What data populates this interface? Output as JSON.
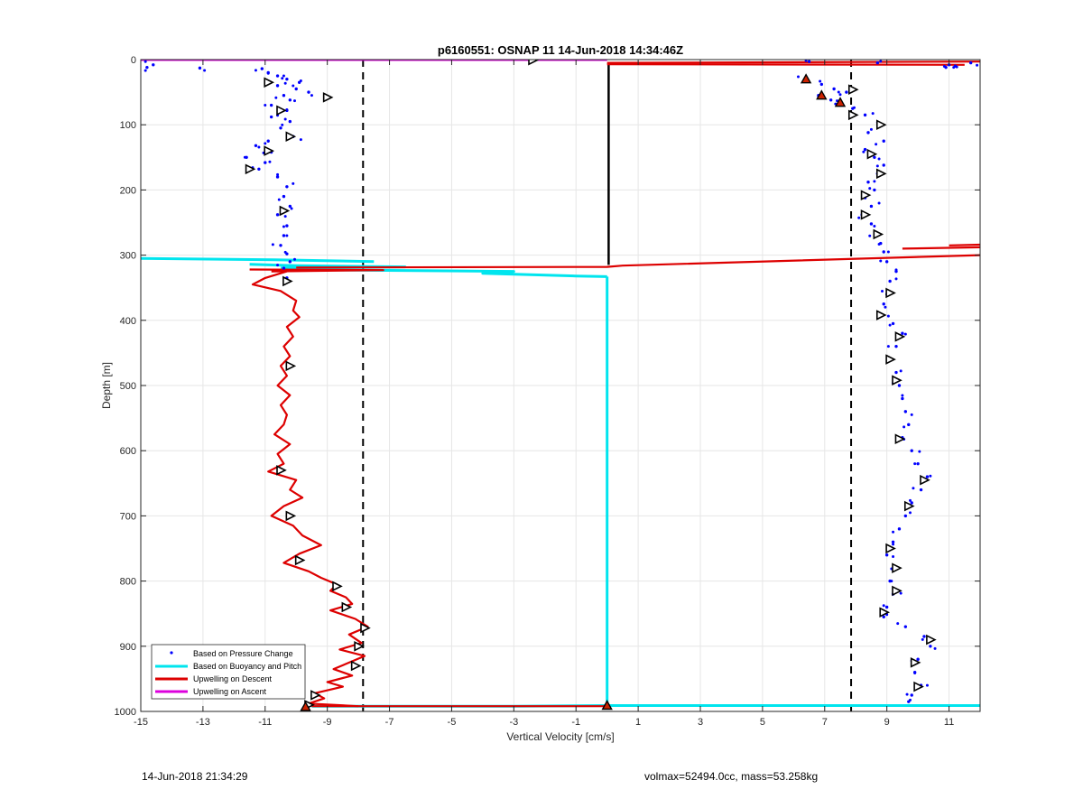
{
  "chart_data": {
    "type": "scatter",
    "title": "p6160551: OSNAP 11 14-Jun-2018 14:34:46Z",
    "xlabel": "Vertical Velocity [cm/s]",
    "ylabel": "Depth [m]",
    "xlim": [
      -15,
      12
    ],
    "ylim": [
      0,
      1000
    ],
    "y_reversed": true,
    "grid": true,
    "xticks": [
      -15,
      -13,
      -11,
      -9,
      -7,
      -5,
      -3,
      -1,
      1,
      3,
      5,
      7,
      9,
      11
    ],
    "yticks": [
      0,
      100,
      200,
      300,
      400,
      500,
      600,
      700,
      800,
      900,
      1000
    ],
    "legend_position": "bottom-left",
    "reference_lines": {
      "dashed_x": [
        -7.85,
        7.85
      ],
      "solid_x": 0.05,
      "solid_depth": [
        5,
        315
      ]
    },
    "series": [
      {
        "name": "Based on Pressure Change",
        "style": "points",
        "color": "#0000ff",
        "descent_points": [
          [
            -14.6,
            8
          ],
          [
            -14.8,
            12
          ],
          [
            -13.1,
            13
          ],
          [
            -11.1,
            14
          ],
          [
            -10.9,
            20
          ],
          [
            -10.6,
            25
          ],
          [
            -10.3,
            30
          ],
          [
            -9.9,
            35
          ],
          [
            -10.6,
            40
          ],
          [
            -10.0,
            45
          ],
          [
            -9.6,
            50
          ],
          [
            -10.4,
            55
          ],
          [
            -9.0,
            58
          ],
          [
            -10.2,
            62
          ],
          [
            -10.8,
            70
          ],
          [
            -10.3,
            78
          ],
          [
            -10.8,
            88
          ],
          [
            -10.2,
            95
          ],
          [
            -10.5,
            105
          ],
          [
            -10.1,
            118
          ],
          [
            -10.9,
            125
          ],
          [
            -11.3,
            132
          ],
          [
            -10.8,
            142
          ],
          [
            -11.6,
            150
          ],
          [
            -11.0,
            158
          ],
          [
            -11.2,
            168
          ],
          [
            -10.6,
            180
          ],
          [
            -10.3,
            195
          ],
          [
            -10.4,
            210
          ],
          [
            -10.2,
            225
          ],
          [
            -10.6,
            238
          ],
          [
            -10.3,
            255
          ],
          [
            -10.4,
            270
          ],
          [
            -10.5,
            285
          ],
          [
            -10.3,
            298
          ],
          [
            -10.2,
            310
          ],
          [
            -10.4,
            320
          ],
          [
            -10.3,
            335
          ]
        ],
        "ascent_points": [
          [
            11.7,
            5
          ],
          [
            11.0,
            8
          ],
          [
            11.2,
            10
          ],
          [
            10.9,
            12
          ],
          [
            6.5,
            3
          ],
          [
            8.7,
            5
          ],
          [
            6.4,
            30
          ],
          [
            6.9,
            38
          ],
          [
            7.3,
            45
          ],
          [
            7.7,
            50
          ],
          [
            6.8,
            55
          ],
          [
            7.2,
            62
          ],
          [
            7.5,
            68
          ],
          [
            7.9,
            75
          ],
          [
            8.3,
            85
          ],
          [
            8.8,
            100
          ],
          [
            8.4,
            112
          ],
          [
            8.9,
            125
          ],
          [
            8.3,
            138
          ],
          [
            8.6,
            150
          ],
          [
            8.9,
            162
          ],
          [
            8.7,
            175
          ],
          [
            8.4,
            188
          ],
          [
            8.6,
            200
          ],
          [
            8.3,
            212
          ],
          [
            8.5,
            225
          ],
          [
            8.2,
            238
          ],
          [
            8.5,
            252
          ],
          [
            8.7,
            268
          ],
          [
            8.8,
            282
          ],
          [
            8.9,
            295
          ],
          [
            9.0,
            310
          ],
          [
            9.3,
            325
          ],
          [
            9.1,
            340
          ],
          [
            9.0,
            360
          ],
          [
            8.9,
            375
          ],
          [
            8.8,
            390
          ],
          [
            9.2,
            405
          ],
          [
            9.5,
            420
          ],
          [
            9.3,
            440
          ],
          [
            9.1,
            460
          ],
          [
            9.3,
            480
          ],
          [
            9.4,
            500
          ],
          [
            9.5,
            520
          ],
          [
            9.6,
            540
          ],
          [
            9.7,
            560
          ],
          [
            9.5,
            580
          ],
          [
            9.8,
            600
          ],
          [
            10.0,
            620
          ],
          [
            10.3,
            640
          ],
          [
            10.1,
            660
          ],
          [
            9.8,
            680
          ],
          [
            9.6,
            700
          ],
          [
            9.4,
            720
          ],
          [
            9.2,
            740
          ],
          [
            9.0,
            760
          ],
          [
            9.3,
            780
          ],
          [
            9.1,
            800
          ],
          [
            9.2,
            820
          ],
          [
            9.0,
            840
          ],
          [
            8.9,
            855
          ],
          [
            9.6,
            870
          ],
          [
            10.2,
            885
          ],
          [
            10.4,
            900
          ],
          [
            10.0,
            920
          ],
          [
            9.9,
            940
          ],
          [
            10.1,
            960
          ],
          [
            9.8,
            975
          ],
          [
            9.7,
            985
          ]
        ]
      },
      {
        "name": "Based on Buoyancy and Pitch",
        "style": "line",
        "color": "#00e5ee",
        "segments": [
          [
            [
              -15,
              305
            ],
            [
              -10.7,
              307
            ],
            [
              -7.5,
              310
            ]
          ],
          [
            [
              -11.5,
              314
            ],
            [
              -10.0,
              316
            ],
            [
              -6.5,
              318
            ],
            [
              -10.5,
              320
            ]
          ],
          [
            [
              -10.5,
              322
            ],
            [
              -3.0,
              325
            ],
            [
              -4.0,
              328
            ],
            [
              -1.0,
              332
            ],
            [
              0.0,
              333
            ]
          ],
          [
            [
              0.0,
              333
            ],
            [
              0.0,
              990
            ]
          ],
          [
            [
              -9.5,
              992
            ],
            [
              -3,
              992
            ],
            [
              0.0,
              991
            ],
            [
              12,
              991
            ]
          ]
        ]
      },
      {
        "name": "Upwelling on Descent",
        "style": "line",
        "color": "#dd0000",
        "profile": [
          [
            -10.3,
            325
          ],
          [
            -11.0,
            335
          ],
          [
            -11.4,
            345
          ],
          [
            -10.5,
            355
          ],
          [
            -10.0,
            370
          ],
          [
            -10.1,
            385
          ],
          [
            -9.9,
            395
          ],
          [
            -10.3,
            410
          ],
          [
            -10.1,
            425
          ],
          [
            -10.4,
            440
          ],
          [
            -10.2,
            455
          ],
          [
            -10.5,
            470
          ],
          [
            -10.3,
            485
          ],
          [
            -10.6,
            500
          ],
          [
            -10.2,
            515
          ],
          [
            -10.5,
            530
          ],
          [
            -10.3,
            545
          ],
          [
            -10.4,
            560
          ],
          [
            -10.7,
            575
          ],
          [
            -10.2,
            590
          ],
          [
            -10.6,
            605
          ],
          [
            -10.4,
            620
          ],
          [
            -10.9,
            632
          ],
          [
            -10.0,
            645
          ],
          [
            -10.2,
            660
          ],
          [
            -9.8,
            672
          ],
          [
            -10.4,
            685
          ],
          [
            -10.8,
            700
          ],
          [
            -10.1,
            715
          ],
          [
            -9.8,
            730
          ],
          [
            -9.2,
            745
          ],
          [
            -9.9,
            758
          ],
          [
            -10.4,
            772
          ],
          [
            -9.6,
            785
          ],
          [
            -9.2,
            795
          ],
          [
            -8.7,
            805
          ],
          [
            -8.9,
            815
          ],
          [
            -8.4,
            825
          ],
          [
            -8.2,
            835
          ],
          [
            -8.9,
            845
          ],
          [
            -8.1,
            858
          ],
          [
            -7.7,
            870
          ],
          [
            -8.3,
            882
          ],
          [
            -7.9,
            895
          ],
          [
            -8.6,
            905
          ],
          [
            -7.8,
            915
          ],
          [
            -8.3,
            925
          ],
          [
            -8.8,
            935
          ],
          [
            -8.2,
            945
          ],
          [
            -9.0,
            955
          ],
          [
            -8.5,
            962
          ],
          [
            -9.4,
            972
          ],
          [
            -9.1,
            980
          ],
          [
            -9.6,
            988
          ],
          [
            -8.0,
            992
          ]
        ],
        "spikes": [
          [
            [
              -11.5,
              322
            ],
            [
              -7.2,
              323
            ],
            [
              -10.8,
              325
            ]
          ],
          [
            [
              -10.0,
              319
            ],
            [
              0.0,
              318
            ],
            [
              0.5,
              316
            ],
            [
              12,
              300
            ]
          ],
          [
            [
              0.0,
              5
            ],
            [
              12,
              3
            ]
          ],
          [
            [
              0.0,
              7
            ],
            [
              11.5,
              8
            ]
          ],
          [
            [
              9.5,
              290
            ],
            [
              12,
              288
            ]
          ],
          [
            [
              11,
              285
            ],
            [
              12,
              284
            ]
          ],
          [
            [
              -9.5,
              992
            ],
            [
              0.0,
              992
            ]
          ]
        ]
      },
      {
        "name": "Upwelling on Ascent",
        "style": "line",
        "color": "#dd00dd",
        "segments": [
          [
            [
              -15,
              0
            ],
            [
              0.0,
              0
            ]
          ]
        ]
      }
    ],
    "markers": {
      "open_triangles": [
        [
          -2.4,
          1
        ],
        [
          -10.9,
          35
        ],
        [
          -9.0,
          58
        ],
        [
          -10.5,
          78
        ],
        [
          -10.2,
          118
        ],
        [
          -10.9,
          140
        ],
        [
          -11.5,
          168
        ],
        [
          -10.4,
          232
        ],
        [
          -10.3,
          340
        ],
        [
          -10.2,
          470
        ],
        [
          -10.5,
          630
        ],
        [
          -10.2,
          700
        ],
        [
          -9.9,
          768
        ],
        [
          -8.7,
          808
        ],
        [
          -8.4,
          840
        ],
        [
          -7.8,
          872
        ],
        [
          -8.0,
          900
        ],
        [
          -8.1,
          930
        ],
        [
          -9.4,
          975
        ],
        [
          -9.6,
          990
        ],
        [
          7.9,
          46
        ],
        [
          7.9,
          85
        ],
        [
          8.8,
          100
        ],
        [
          8.5,
          145
        ],
        [
          8.8,
          175
        ],
        [
          8.3,
          208
        ],
        [
          8.3,
          238
        ],
        [
          8.7,
          268
        ],
        [
          9.1,
          358
        ],
        [
          8.8,
          392
        ],
        [
          9.4,
          425
        ],
        [
          9.1,
          460
        ],
        [
          9.3,
          492
        ],
        [
          9.4,
          582
        ],
        [
          10.2,
          645
        ],
        [
          9.7,
          685
        ],
        [
          9.1,
          750
        ],
        [
          9.3,
          780
        ],
        [
          9.3,
          815
        ],
        [
          8.9,
          848
        ],
        [
          10.4,
          890
        ],
        [
          9.9,
          925
        ],
        [
          10.0,
          962
        ]
      ],
      "filled_triangles": [
        [
          6.4,
          30
        ],
        [
          6.9,
          55
        ],
        [
          7.5,
          66
        ],
        [
          0.0,
          991
        ],
        [
          -9.7,
          993
        ]
      ]
    }
  },
  "footer": {
    "timestamp": "14-Jun-2018 21:34:29",
    "vehicle_info": "volmax=52494.0cc, mass=53.258kg"
  }
}
